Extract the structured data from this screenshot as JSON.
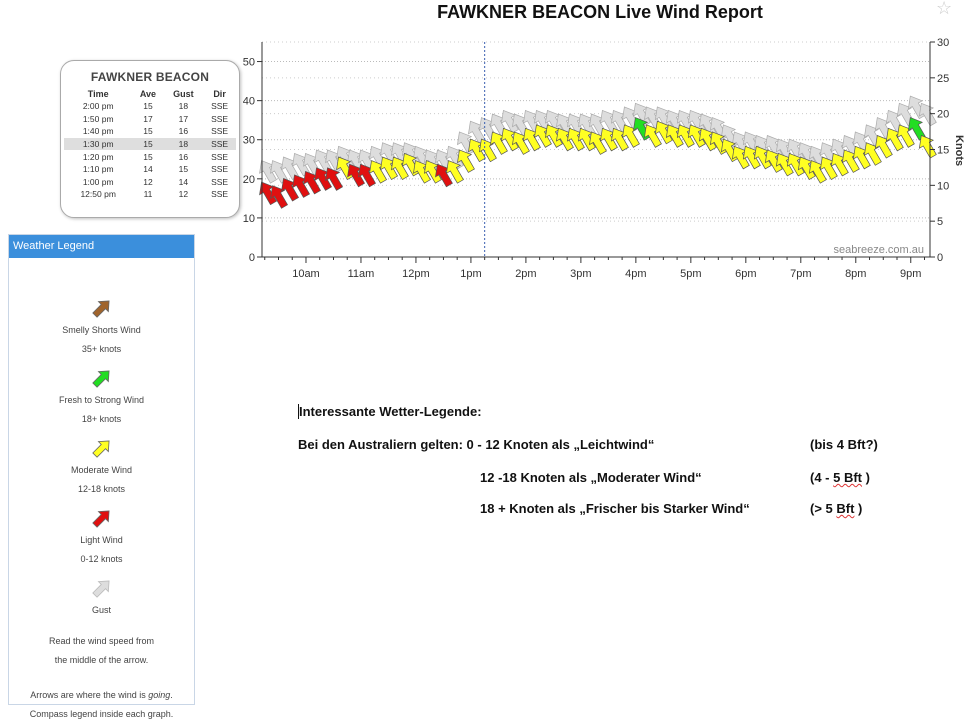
{
  "title": "FAWKNER BEACON Live Wind Report",
  "icons": {
    "favorite": "star-outline-icon"
  },
  "table": {
    "title": "FAWKNER BEACON",
    "headers": [
      "Time",
      "Ave",
      "Gust",
      "Dir"
    ],
    "rows": [
      [
        "2:00 pm",
        "15",
        "18",
        "SSE"
      ],
      [
        "1:50 pm",
        "17",
        "17",
        "SSE"
      ],
      [
        "1:40 pm",
        "15",
        "16",
        "SSE"
      ],
      [
        "1:30 pm",
        "15",
        "18",
        "SSE"
      ],
      [
        "1:20 pm",
        "15",
        "16",
        "SSE"
      ],
      [
        "1:10 pm",
        "14",
        "15",
        "SSE"
      ],
      [
        "1:00 pm",
        "12",
        "14",
        "SSE"
      ],
      [
        "12:50 pm",
        "11",
        "12",
        "SSE"
      ]
    ],
    "selected_row": 3
  },
  "legend": {
    "header": "Weather Legend",
    "items": [
      {
        "label": "Smelly Shorts Wind",
        "sub": "35+ knots",
        "color": "#a0642c"
      },
      {
        "label": "Fresh to Strong Wind",
        "sub": "18+ knots",
        "color": "#22dd22"
      },
      {
        "label": "Moderate Wind",
        "sub": "12-18 knots",
        "color": "#ffff22"
      },
      {
        "label": "Light Wind",
        "sub": "0-12 knots",
        "color": "#e01010"
      },
      {
        "label": "Gust",
        "sub": "",
        "color": "#dddddd"
      }
    ],
    "note1a": "Read the wind speed from",
    "note1b": "the middle of the arrow.",
    "note2a_pre": "Arrows are where the wind is ",
    "note2a_em": "going",
    "note2a_post": ".",
    "note2b": "Compass legend inside each graph."
  },
  "notes": {
    "heading": "Interessante Wetter-Legende:",
    "l1a": "Bei den Australiern gelten:  0 - 12 Knoten als „Leichtwind“",
    "l1b": "(bis 4 Bft?)",
    "l2a": "12 -18 Knoten als „Moderater Wind“",
    "l2b_pre": "(4 - ",
    "l2b_sq": "5  Bft",
    "l2b_post": " )",
    "l3a": "18 +     Knoten als „Frischer bis Starker Wind“",
    "l3b_pre": "(> 5 ",
    "l3b_sq": "Bft",
    "l3b_post": " )"
  },
  "chart_data": {
    "type": "scatter",
    "title": "FAWKNER BEACON Live Wind Report",
    "watermark": "seabreeze.com.au",
    "x_unit": "hours (local time)",
    "xlim": [
      9.2,
      21.35
    ],
    "xticks": [
      {
        "v": 10,
        "label": "10am"
      },
      {
        "v": 11,
        "label": "11am"
      },
      {
        "v": 12,
        "label": "12pm"
      },
      {
        "v": 13,
        "label": "1pm"
      },
      {
        "v": 14,
        "label": "2pm"
      },
      {
        "v": 15,
        "label": "3pm"
      },
      {
        "v": 16,
        "label": "4pm"
      },
      {
        "v": 17,
        "label": "5pm"
      },
      {
        "v": 18,
        "label": "6pm"
      },
      {
        "v": 19,
        "label": "7pm"
      },
      {
        "v": 20,
        "label": "8pm"
      },
      {
        "v": 21,
        "label": "9pm"
      }
    ],
    "left_axis": {
      "ylim": [
        0,
        55
      ],
      "ticks": [
        0,
        10,
        20,
        30,
        40,
        50
      ]
    },
    "right_axis": {
      "label": "Knots",
      "ylim": [
        0,
        30
      ],
      "ticks": [
        0,
        5,
        10,
        15,
        20,
        25,
        30
      ]
    },
    "now_marker_x": 13.25,
    "direction": "SSE",
    "colors": {
      "light": "#e01010",
      "moderate": "#ffff22",
      "fresh": "#22dd22",
      "gust": "#dddddd"
    },
    "series": [
      {
        "name": "Ave",
        "x": [
          9.3,
          9.5,
          9.7,
          9.9,
          10.1,
          10.3,
          10.5,
          10.7,
          10.9,
          11.1,
          11.3,
          11.5,
          11.7,
          11.9,
          12.1,
          12.3,
          12.5,
          12.7,
          12.9,
          13.1,
          13.3,
          13.5,
          13.7,
          13.9,
          14.1,
          14.3,
          14.5,
          14.7,
          14.9,
          15.1,
          15.3,
          15.5,
          15.7,
          15.9,
          16.1,
          16.3,
          16.5,
          16.7,
          16.9,
          17.1,
          17.3,
          17.5,
          17.7,
          17.9,
          18.1,
          18.3,
          18.5,
          18.7,
          18.9,
          19.1,
          19.3,
          19.5,
          19.7,
          19.9,
          20.1,
          20.3,
          20.5,
          20.7,
          20.9,
          21.1,
          21.3
        ],
        "y": [
          9,
          8.5,
          9.5,
          10,
          10.5,
          11,
          11,
          12.5,
          11.5,
          11.5,
          12,
          12.5,
          12.5,
          13,
          12,
          12,
          11.5,
          12,
          13.5,
          15,
          15,
          16,
          16.5,
          16,
          16.5,
          17,
          17,
          16.5,
          16.5,
          16.5,
          16,
          16.5,
          16.5,
          17,
          18,
          17,
          17.5,
          17,
          17,
          17,
          16.5,
          16,
          15,
          14,
          14,
          14,
          13.5,
          13,
          13,
          12.5,
          12,
          12.5,
          13,
          13.5,
          14,
          14.5,
          15.5,
          16.5,
          17,
          18,
          15.5
        ]
      },
      {
        "name": "Gust",
        "x": [
          9.3,
          9.5,
          9.7,
          9.9,
          10.1,
          10.3,
          10.5,
          10.7,
          10.9,
          11.1,
          11.3,
          11.5,
          11.7,
          11.9,
          12.1,
          12.3,
          12.5,
          12.7,
          12.9,
          13.1,
          13.3,
          13.5,
          13.7,
          13.9,
          14.1,
          14.3,
          14.5,
          14.7,
          14.9,
          15.1,
          15.3,
          15.5,
          15.7,
          15.9,
          16.1,
          16.3,
          16.5,
          16.7,
          16.9,
          17.1,
          17.3,
          17.5,
          17.7,
          17.9,
          18.1,
          18.3,
          18.5,
          18.7,
          18.9,
          19.1,
          19.3,
          19.5,
          19.7,
          19.9,
          20.1,
          20.3,
          20.5,
          20.7,
          20.9,
          21.1,
          21.3
        ],
        "y": [
          12,
          12,
          12.5,
          13,
          13,
          13.5,
          13.5,
          14,
          13.5,
          13.5,
          14,
          14.5,
          14.5,
          14.5,
          14,
          13.5,
          13.5,
          14,
          16,
          17.5,
          18,
          18.5,
          19,
          18.5,
          19,
          19,
          19,
          18.5,
          18.5,
          18.5,
          18.5,
          19,
          19,
          19.5,
          20,
          19.5,
          19.5,
          19,
          19,
          19,
          18.5,
          18,
          17,
          16,
          16,
          15.5,
          15.5,
          15,
          15,
          14.5,
          14,
          14.5,
          15,
          15.5,
          16,
          17,
          18,
          19,
          20,
          21,
          20
        ]
      }
    ]
  }
}
